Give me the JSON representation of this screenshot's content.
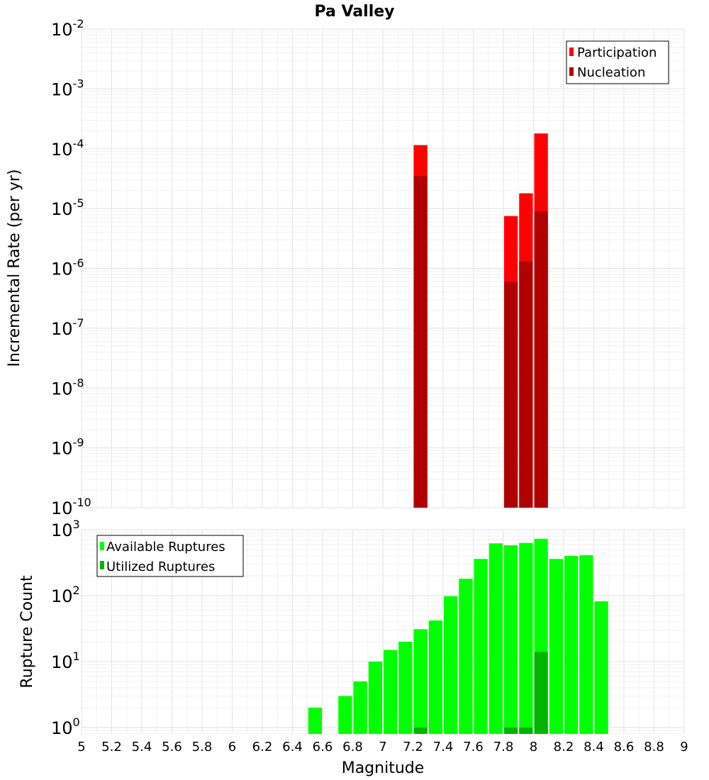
{
  "chart_data": [
    {
      "type": "bar",
      "title": "Pa Valley",
      "xlabel": "",
      "ylabel": "Incremental Rate (per yr)",
      "yscale": "log",
      "ylim": [
        1e-10,
        0.01
      ],
      "xlim": [
        5,
        9
      ],
      "bar_width": 0.1,
      "grid": true,
      "legend_position": "top-right",
      "ytick_labels": [
        {
          "base": "10",
          "exp": "-10",
          "value": 1e-10
        },
        {
          "base": "10",
          "exp": "-9",
          "value": 1e-09
        },
        {
          "base": "10",
          "exp": "-8",
          "value": 1e-08
        },
        {
          "base": "10",
          "exp": "-7",
          "value": 1e-07
        },
        {
          "base": "10",
          "exp": "-6",
          "value": 1e-06
        },
        {
          "base": "10",
          "exp": "-5",
          "value": 1e-05
        },
        {
          "base": "10",
          "exp": "-4",
          "value": 0.0001
        },
        {
          "base": "10",
          "exp": "-3",
          "value": 0.001
        },
        {
          "base": "10",
          "exp": "-2",
          "value": 0.01
        }
      ],
      "series": [
        {
          "name": "Participation",
          "color": "#ff0000",
          "points": [
            {
              "x": 7.25,
              "y": 0.000115
            },
            {
              "x": 7.85,
              "y": 7.5e-06
            },
            {
              "x": 7.95,
              "y": 1.8e-05
            },
            {
              "x": 8.05,
              "y": 0.00018
            }
          ]
        },
        {
          "name": "Nucleation",
          "color": "#b00000",
          "points": [
            {
              "x": 7.25,
              "y": 3.5e-05
            },
            {
              "x": 7.85,
              "y": 6e-07
            },
            {
              "x": 7.95,
              "y": 1.3e-06
            },
            {
              "x": 8.05,
              "y": 9e-06
            }
          ]
        }
      ]
    },
    {
      "type": "bar",
      "title": "",
      "xlabel": "Magnitude",
      "ylabel": "Rupture Count",
      "yscale": "log",
      "ylim": [
        0.8,
        1000
      ],
      "xlim": [
        5,
        9
      ],
      "bar_width": 0.1,
      "grid": true,
      "legend_position": "top-left",
      "xticks": [
        "5",
        "5.2",
        "5.4",
        "5.6",
        "5.8",
        "6",
        "6.2",
        "6.4",
        "6.6",
        "6.8",
        "7",
        "7.2",
        "7.4",
        "7.6",
        "7.8",
        "8",
        "8.2",
        "8.4",
        "8.6",
        "8.8",
        "9"
      ],
      "ytick_labels": [
        {
          "base": "10",
          "exp": "0",
          "value": 1
        },
        {
          "base": "10",
          "exp": "1",
          "value": 10
        },
        {
          "base": "10",
          "exp": "2",
          "value": 100
        },
        {
          "base": "10",
          "exp": "3",
          "value": 1000
        }
      ],
      "series": [
        {
          "name": "Available Ruptures",
          "color": "#00ff00",
          "points": [
            {
              "x": 6.55,
              "y": 2
            },
            {
              "x": 6.75,
              "y": 3
            },
            {
              "x": 6.85,
              "y": 5
            },
            {
              "x": 6.95,
              "y": 10
            },
            {
              "x": 7.05,
              "y": 15
            },
            {
              "x": 7.15,
              "y": 20
            },
            {
              "x": 7.25,
              "y": 31
            },
            {
              "x": 7.35,
              "y": 42
            },
            {
              "x": 7.45,
              "y": 98
            },
            {
              "x": 7.55,
              "y": 180
            },
            {
              "x": 7.65,
              "y": 360
            },
            {
              "x": 7.75,
              "y": 620
            },
            {
              "x": 7.85,
              "y": 580
            },
            {
              "x": 7.95,
              "y": 630
            },
            {
              "x": 8.05,
              "y": 730
            },
            {
              "x": 8.15,
              "y": 360
            },
            {
              "x": 8.25,
              "y": 400
            },
            {
              "x": 8.35,
              "y": 410
            },
            {
              "x": 8.45,
              "y": 82
            }
          ]
        },
        {
          "name": "Utilized Ruptures",
          "color": "#00b400",
          "points": [
            {
              "x": 7.25,
              "y": 1
            },
            {
              "x": 7.85,
              "y": 1
            },
            {
              "x": 7.95,
              "y": 1
            },
            {
              "x": 8.05,
              "y": 14
            }
          ]
        }
      ]
    }
  ]
}
